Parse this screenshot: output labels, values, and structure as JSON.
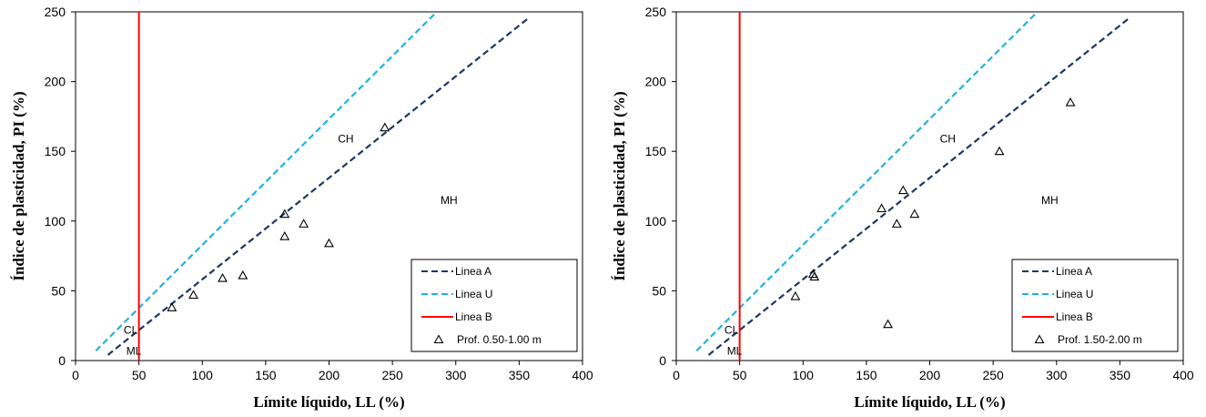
{
  "chart_data": [
    {
      "type": "scatter",
      "xlabel": "Límite líquido, LL (%)",
      "ylabel": "Índice de plasticidad, PI (%)",
      "xlim": [
        0,
        400
      ],
      "ylim": [
        0,
        250
      ],
      "xticks": [
        0,
        50,
        100,
        150,
        200,
        250,
        300,
        350,
        400
      ],
      "yticks": [
        0,
        50,
        100,
        150,
        200,
        250
      ],
      "grid": false,
      "legend_position": "bottom-right",
      "lines": [
        {
          "name": "Linea A",
          "style": "dashed",
          "color": "#1f3864",
          "x": [
            25.5,
            358
          ],
          "y": [
            4,
            246
          ]
        },
        {
          "name": "Linea U",
          "style": "dashed",
          "color": "#1fb4e0",
          "x": [
            16,
            285
          ],
          "y": [
            7,
            250
          ]
        },
        {
          "name": "Linea B",
          "style": "solid",
          "color": "#ff0000",
          "x": [
            50,
            50
          ],
          "y": [
            0,
            250
          ]
        }
      ],
      "series": [
        {
          "name": "Prof. 0.50-1.00 m",
          "marker": "triangle-open",
          "color": "#000000",
          "x": [
            76,
            93,
            116,
            132,
            165,
            165,
            180,
            200,
            244
          ],
          "y": [
            38,
            47,
            59,
            61,
            89,
            105,
            98,
            84,
            167
          ]
        }
      ],
      "region_labels": [
        {
          "text": "CH",
          "x": 207,
          "y": 159
        },
        {
          "text": "MH",
          "x": 288,
          "y": 115
        },
        {
          "text": "CL",
          "x": 38,
          "y": 22
        },
        {
          "text": "ML",
          "x": 40,
          "y": 7
        }
      ]
    },
    {
      "type": "scatter",
      "xlabel": "Límite líquido, LL (%)",
      "ylabel": "Índice de plasticidad, PI (%)",
      "xlim": [
        0,
        400
      ],
      "ylim": [
        0,
        250
      ],
      "xticks": [
        0,
        50,
        100,
        150,
        200,
        250,
        300,
        350,
        400
      ],
      "yticks": [
        0,
        50,
        100,
        150,
        200,
        250
      ],
      "grid": false,
      "legend_position": "bottom-right",
      "lines": [
        {
          "name": "Linea A",
          "style": "dashed",
          "color": "#1f3864",
          "x": [
            25.5,
            358
          ],
          "y": [
            4,
            246
          ]
        },
        {
          "name": "Linea U",
          "style": "dashed",
          "color": "#1fb4e0",
          "x": [
            16,
            285
          ],
          "y": [
            7,
            250
          ]
        },
        {
          "name": "Linea B",
          "style": "solid",
          "color": "#ff0000",
          "x": [
            50,
            50
          ],
          "y": [
            0,
            250
          ]
        }
      ],
      "series": [
        {
          "name": "Prof. 1.50-2.00 m",
          "marker": "triangle-open",
          "color": "#000000",
          "x": [
            94,
            109,
            108,
            162,
            167,
            174,
            179,
            188,
            255,
            311
          ],
          "y": [
            46,
            60,
            62,
            109,
            26,
            98,
            122,
            105,
            150,
            185
          ]
        }
      ],
      "region_labels": [
        {
          "text": "CH",
          "x": 208,
          "y": 159
        },
        {
          "text": "MH",
          "x": 288,
          "y": 115
        },
        {
          "text": "CL",
          "x": 38,
          "y": 22
        },
        {
          "text": "ML",
          "x": 40,
          "y": 7
        }
      ]
    }
  ]
}
